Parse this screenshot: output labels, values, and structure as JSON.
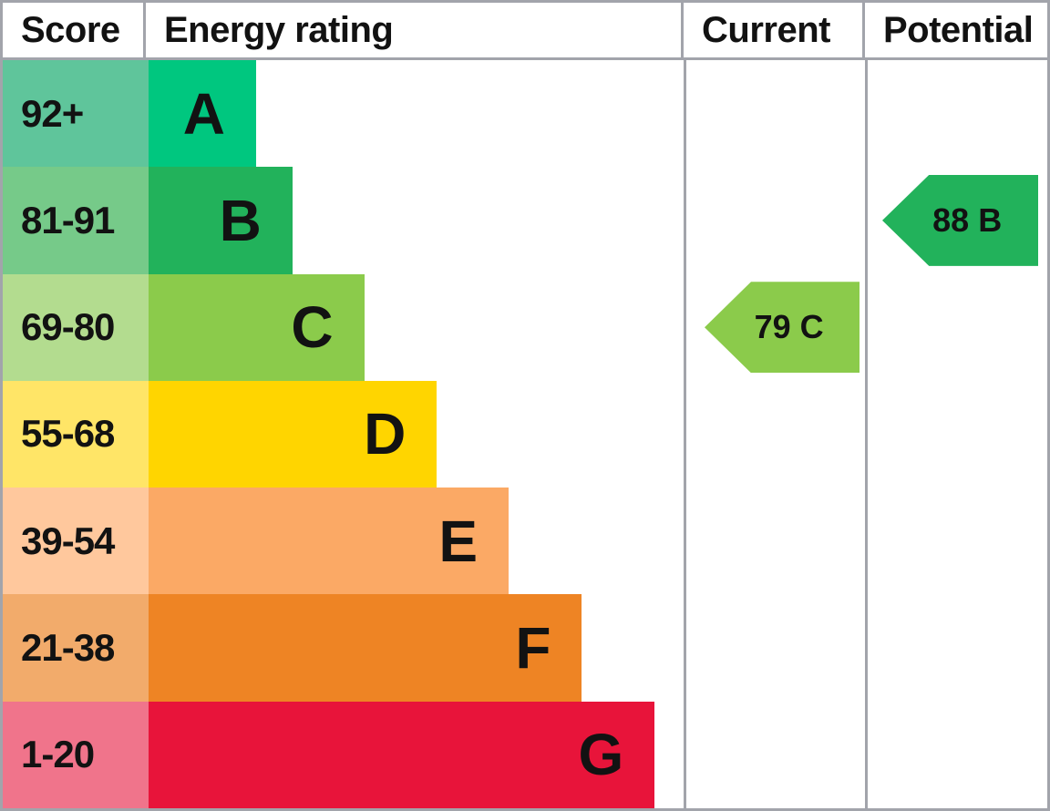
{
  "header": {
    "score": "Score",
    "energy_rating": "Energy rating",
    "current": "Current",
    "potential": "Potential"
  },
  "chart_data": {
    "type": "bar",
    "chart_kind": "epc-energy-rating",
    "title": "Energy rating chart with Score, Current and Potential columns",
    "bands": [
      {
        "letter": "A",
        "score_range": "92+",
        "score_bg": "#5FC59B",
        "bar_color": "#00C77F",
        "bar_width_pct": 20.1
      },
      {
        "letter": "B",
        "score_range": "81-91",
        "score_bg": "#76CA89",
        "bar_color": "#22B25B",
        "bar_width_pct": 26.9
      },
      {
        "letter": "C",
        "score_range": "69-80",
        "score_bg": "#B3DC8F",
        "bar_color": "#8BCB4B",
        "bar_width_pct": 40.3
      },
      {
        "letter": "D",
        "score_range": "55-68",
        "score_bg": "#FFE567",
        "bar_color": "#FFD500",
        "bar_width_pct": 53.9
      },
      {
        "letter": "E",
        "score_range": "39-54",
        "score_bg": "#FFC89D",
        "bar_color": "#FBA965",
        "bar_width_pct": 67.3
      },
      {
        "letter": "F",
        "score_range": "21-38",
        "score_bg": "#F2AB6B",
        "bar_color": "#EE8424",
        "bar_width_pct": 81.0
      },
      {
        "letter": "G",
        "score_range": "1-20",
        "score_bg": "#F0748B",
        "bar_color": "#E8143A",
        "bar_width_pct": 94.6
      }
    ],
    "current": {
      "score": 79,
      "band": "C",
      "label": "79 C",
      "color": "#8BCB4B",
      "band_index": 2
    },
    "potential": {
      "score": 88,
      "band": "B",
      "label": "88 B",
      "color": "#22B25B",
      "band_index": 1
    }
  },
  "colors": {
    "border": "#A2A4AB",
    "background": "#FFFFFF",
    "text": "#121212"
  }
}
